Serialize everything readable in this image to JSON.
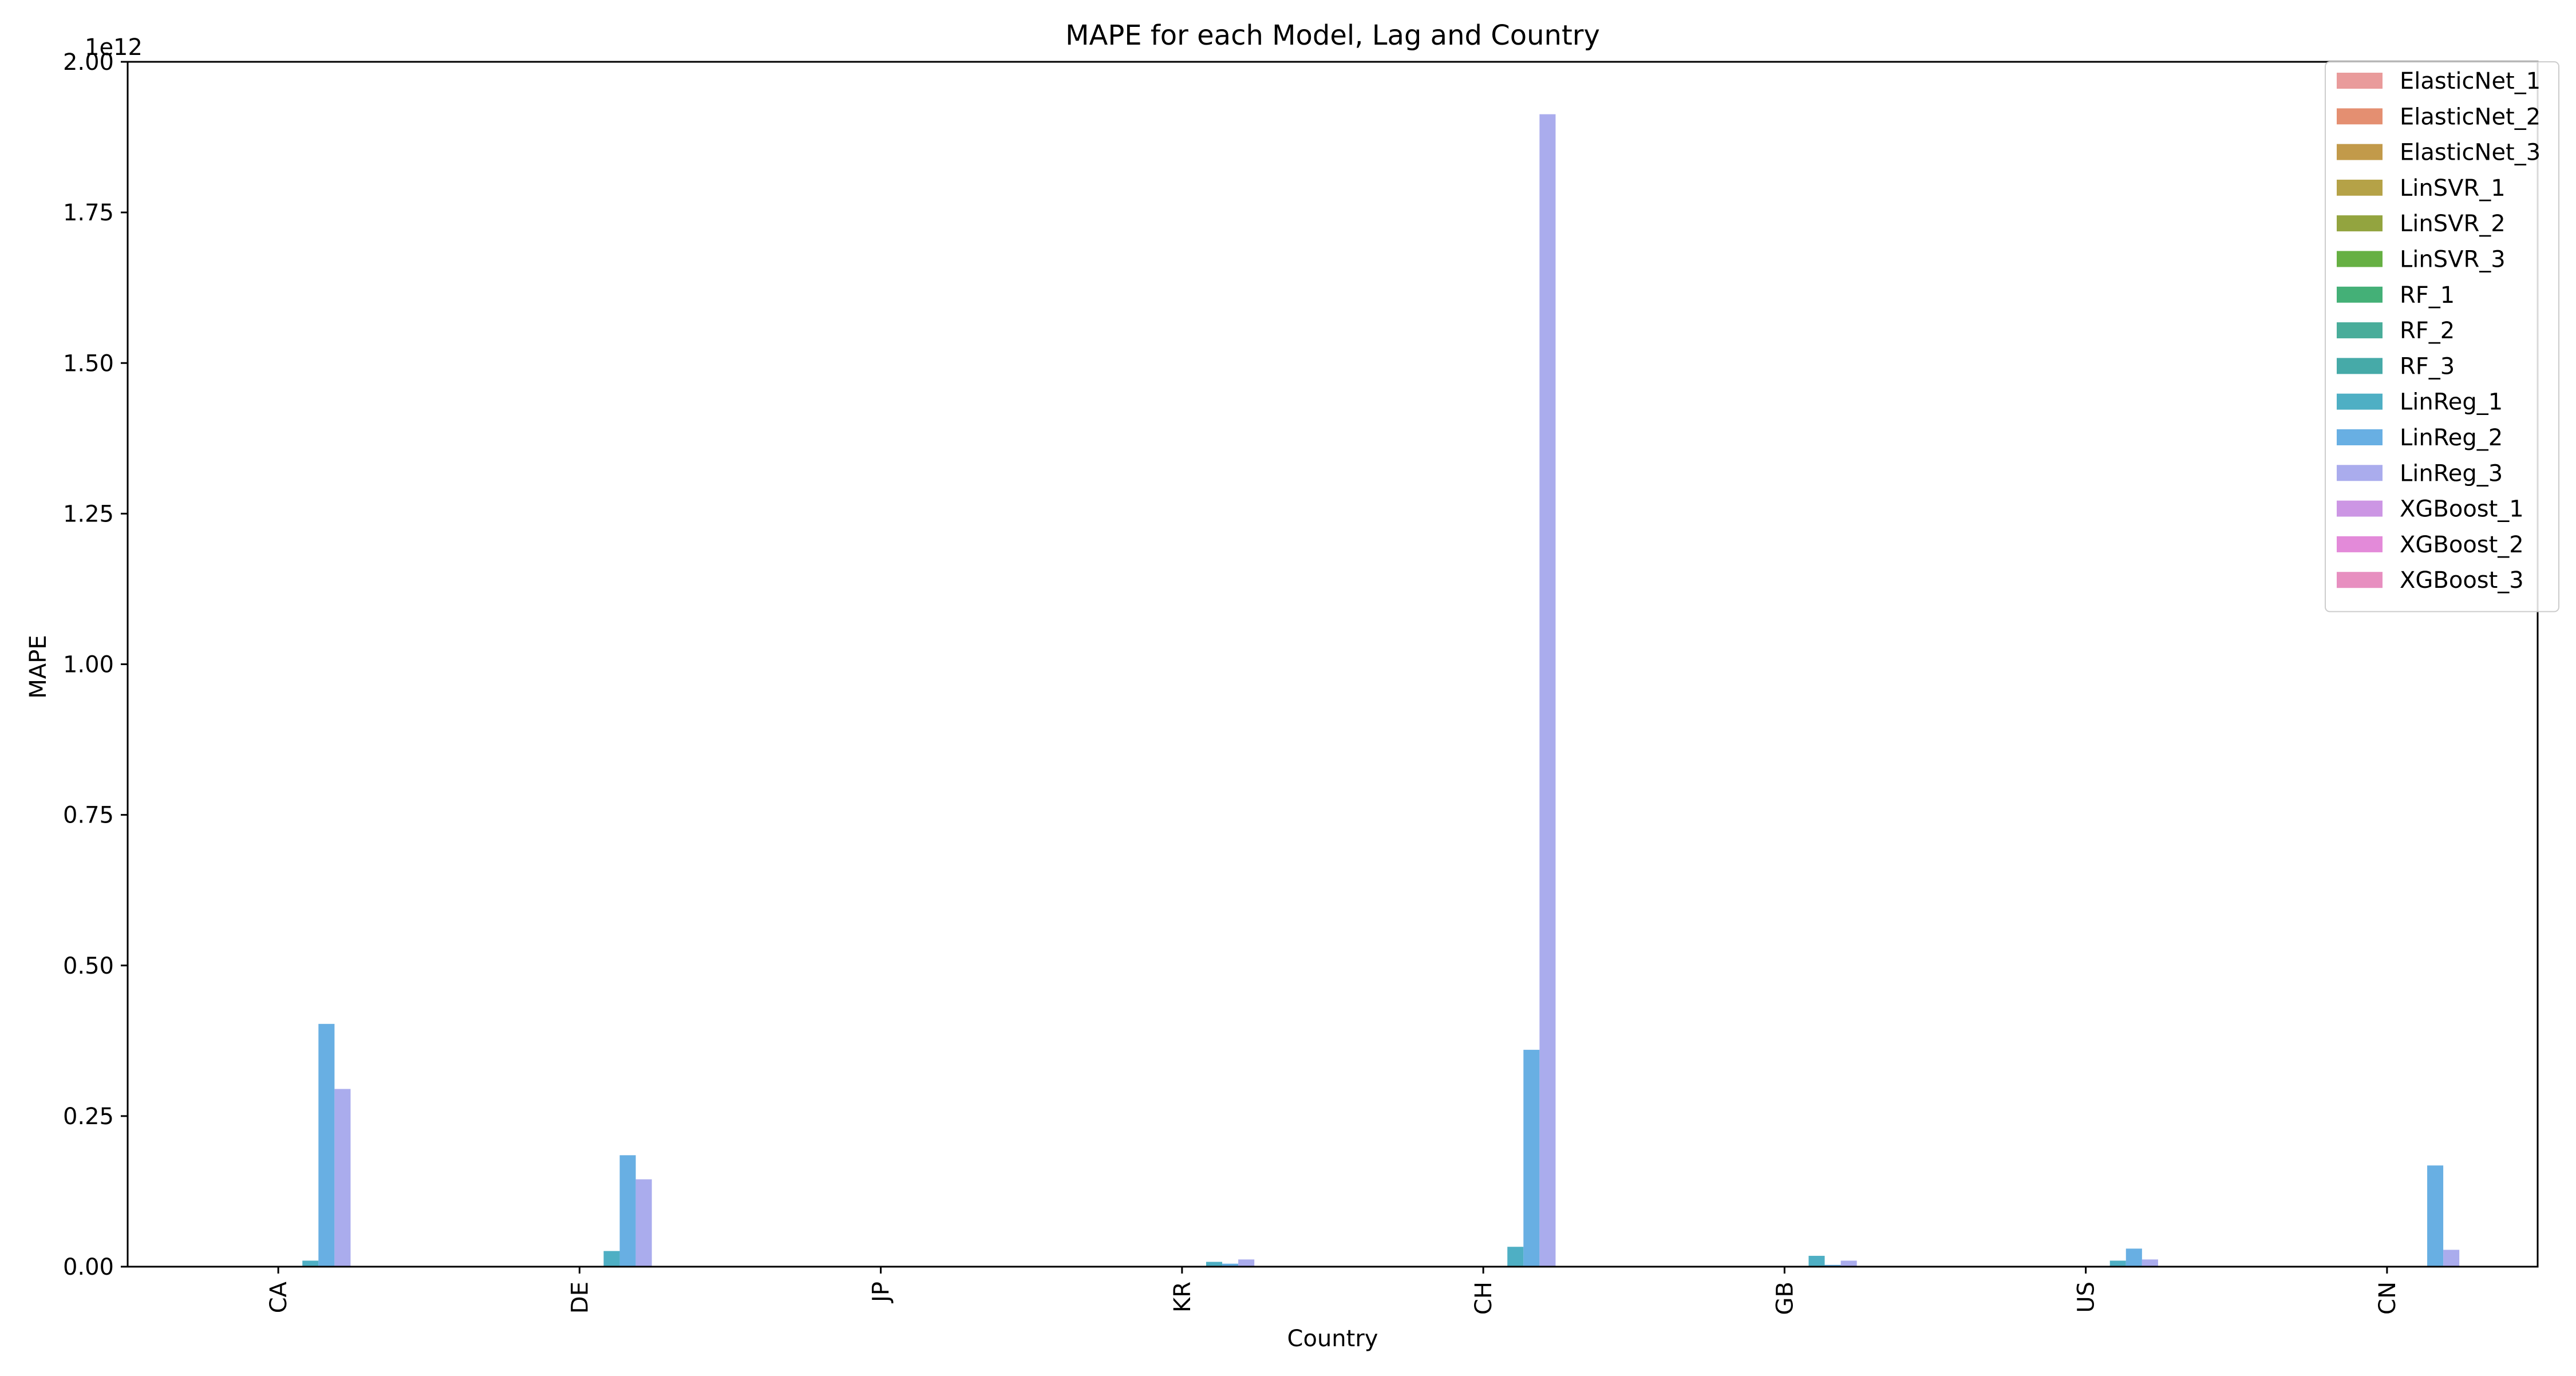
{
  "chart_data": {
    "type": "bar",
    "title": "MAPE for each Model, Lag and Country",
    "xlabel": "Country",
    "ylabel": "MAPE",
    "y_offset_label": "1e12",
    "y_scale": 1000000000000.0,
    "ylim": [
      0,
      2.0
    ],
    "y_ticks": [
      "0.00",
      "0.25",
      "0.50",
      "0.75",
      "1.00",
      "1.25",
      "1.50",
      "1.75",
      "2.00"
    ],
    "categories": [
      "CA",
      "DE",
      "JP",
      "KR",
      "CH",
      "GB",
      "US",
      "CN"
    ],
    "grid": false,
    "legend_position": "top-right",
    "series": [
      {
        "name": "ElasticNet_1",
        "color": "#e99b9b",
        "values": [
          0,
          0,
          0,
          0,
          0,
          0,
          0,
          0
        ]
      },
      {
        "name": "ElasticNet_2",
        "color": "#e48f71",
        "values": [
          0,
          0,
          0,
          0,
          0,
          0,
          0,
          0
        ]
      },
      {
        "name": "ElasticNet_3",
        "color": "#c29a4a",
        "values": [
          0,
          0,
          0,
          0,
          0,
          0,
          0,
          0
        ]
      },
      {
        "name": "LinSVR_1",
        "color": "#b5a247",
        "values": [
          0,
          0,
          0,
          0,
          0,
          0,
          0,
          0
        ]
      },
      {
        "name": "LinSVR_2",
        "color": "#93a43f",
        "values": [
          0,
          0,
          0,
          0,
          0,
          0,
          0,
          0
        ]
      },
      {
        "name": "LinSVR_3",
        "color": "#66b043",
        "values": [
          0,
          0,
          0,
          0,
          0,
          0,
          0,
          0
        ]
      },
      {
        "name": "RF_1",
        "color": "#44b077",
        "values": [
          0,
          0,
          0,
          0,
          0,
          0,
          0,
          0
        ]
      },
      {
        "name": "RF_2",
        "color": "#49ad9a",
        "values": [
          0,
          0,
          0,
          0,
          0,
          0,
          0,
          0
        ]
      },
      {
        "name": "RF_3",
        "color": "#46aaa8",
        "values": [
          0,
          0,
          0,
          0,
          0,
          0,
          0,
          0
        ]
      },
      {
        "name": "LinReg_1",
        "color": "#4eafc4",
        "values": [
          0.01,
          0.026,
          0,
          0.008,
          0.033,
          0.018,
          0.01,
          0
        ]
      },
      {
        "name": "LinReg_2",
        "color": "#68afe3",
        "values": [
          0.403,
          0.185,
          0,
          0.005,
          0.36,
          0.003,
          0.03,
          0.168
        ]
      },
      {
        "name": "LinReg_3",
        "color": "#aaaced",
        "values": [
          0.295,
          0.145,
          0,
          0.012,
          1.913,
          0.01,
          0.012,
          0.028
        ]
      },
      {
        "name": "XGBoost_1",
        "color": "#cc96e4",
        "values": [
          0,
          0,
          0,
          0,
          0,
          0,
          0,
          0
        ]
      },
      {
        "name": "XGBoost_2",
        "color": "#e38ad9",
        "values": [
          0,
          0,
          0,
          0,
          0,
          0,
          0,
          0
        ]
      },
      {
        "name": "XGBoost_3",
        "color": "#e78fc0",
        "values": [
          0,
          0,
          0,
          0,
          0,
          0,
          0,
          0
        ]
      }
    ]
  }
}
